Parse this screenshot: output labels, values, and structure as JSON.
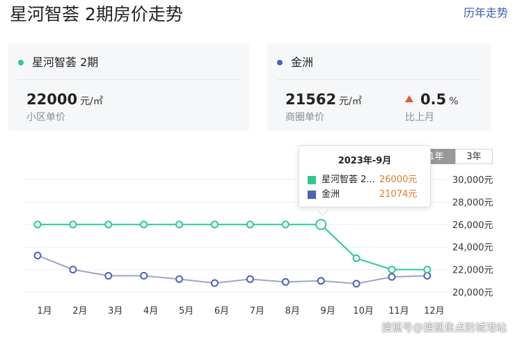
{
  "header": {
    "title": "星河智荟 2期房价走势",
    "history_link": "历年走势"
  },
  "cards": {
    "left": {
      "name": "星河智荟 2期",
      "dot_color": "#2dc98f",
      "value": "22000",
      "unit": "元/㎡",
      "label": "小区单价"
    },
    "right": {
      "name": "金洲",
      "dot_color": "#4a62b8",
      "value": "21562",
      "unit": "元/㎡",
      "label": "商圈单价",
      "change_value": "0.5",
      "change_unit": "%",
      "change_label": "比上月",
      "change_color": "#e0583a"
    }
  },
  "range_tabs": [
    {
      "label": "1年",
      "active": true
    },
    {
      "label": "3年",
      "active": false
    }
  ],
  "tooltip": {
    "title": "2023年-9月",
    "rows": [
      {
        "name": "星河智荟 2...",
        "value": "26000元",
        "color": "#2dc98f"
      },
      {
        "name": "金洲",
        "value": "21074元",
        "color": "#4a62b8"
      }
    ]
  },
  "chart_data": {
    "type": "line",
    "categories": [
      "1月",
      "2月",
      "3月",
      "4月",
      "5月",
      "6月",
      "7月",
      "8月",
      "9月",
      "10月",
      "11月",
      "12月"
    ],
    "series": [
      {
        "color": "#2dc98f",
        "fill": "#ffffff",
        "values": [
          26000,
          26000,
          26000,
          26000,
          26000,
          26000,
          26000,
          26000,
          26000,
          23000,
          22000,
          22000
        ]
      },
      {
        "color": "#9aa6c8",
        "marker": "#4a62b8",
        "values": [
          23250,
          22000,
          21450,
          21450,
          21150,
          20800,
          21150,
          20900,
          21000,
          20750,
          21350,
          21450
        ]
      }
    ],
    "y_ticks": [
      "20,000元",
      "22,000元",
      "24,000元",
      "26,000元",
      "28,000元",
      "30,000元"
    ],
    "y_tick_values": [
      20000,
      22000,
      24000,
      26000,
      28000,
      30000
    ],
    "ylim": [
      19800,
      31000
    ],
    "highlight_index": 8,
    "grid": true,
    "grid_color": "#eeeeee"
  },
  "watermark": "搜狐号@搜狐焦点防城港站"
}
